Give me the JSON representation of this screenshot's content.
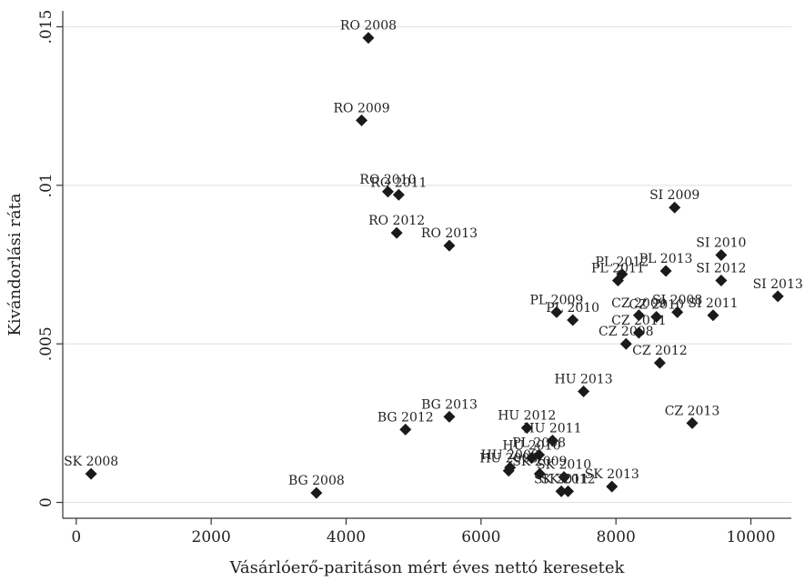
{
  "chart_data": {
    "type": "scatter",
    "title": "",
    "xlabel": "Vásárlóerő-paritáson mért éves nettó keresetek",
    "ylabel": "Kivándorlási ráta",
    "xlim": [
      -200,
      10600
    ],
    "ylim": [
      -0.0005,
      0.0155
    ],
    "xticks": [
      {
        "v": 0,
        "label": "0"
      },
      {
        "v": 2000,
        "label": "2000"
      },
      {
        "v": 4000,
        "label": "4000"
      },
      {
        "v": 6000,
        "label": "6000"
      },
      {
        "v": 8000,
        "label": "8000"
      },
      {
        "v": 10000,
        "label": "10000"
      }
    ],
    "yticks": [
      {
        "v": 0,
        "label": "0"
      },
      {
        "v": 0.005,
        "label": ".005"
      },
      {
        "v": 0.01,
        "label": ".01"
      },
      {
        "v": 0.015,
        "label": ".015"
      }
    ],
    "grid": true,
    "marker": "diamond",
    "marker_color": "#1a1a1a",
    "points": [
      {
        "label": "SK 2008",
        "x": 220,
        "y": 0.0009
      },
      {
        "label": "BG 2008",
        "x": 3560,
        "y": 0.0003
      },
      {
        "label": "BG 2012",
        "x": 4880,
        "y": 0.0023
      },
      {
        "label": "BG 2013",
        "x": 5530,
        "y": 0.0027
      },
      {
        "label": "RO 2008",
        "x": 4330,
        "y": 0.01465
      },
      {
        "label": "RO 2009",
        "x": 4230,
        "y": 0.01205
      },
      {
        "label": "RO 2010",
        "x": 4620,
        "y": 0.0098
      },
      {
        "label": "RO 2011",
        "x": 4780,
        "y": 0.0097
      },
      {
        "label": "RO 2012",
        "x": 4750,
        "y": 0.0085
      },
      {
        "label": "RO 2013",
        "x": 5530,
        "y": 0.0081
      },
      {
        "label": "HU 2008",
        "x": 6410,
        "y": 0.001
      },
      {
        "label": "HU 2009",
        "x": 6430,
        "y": 0.0011
      },
      {
        "label": "HU 2010",
        "x": 6750,
        "y": 0.0014
      },
      {
        "label": "HU 2011",
        "x": 7060,
        "y": 0.00195
      },
      {
        "label": "HU 2012",
        "x": 6680,
        "y": 0.00235
      },
      {
        "label": "HU 2013",
        "x": 7520,
        "y": 0.0035
      },
      {
        "label": "SK 2009",
        "x": 6870,
        "y": 0.0009
      },
      {
        "label": "SK 2010",
        "x": 7230,
        "y": 0.0008
      },
      {
        "label": "SK 2011",
        "x": 7190,
        "y": 0.00035
      },
      {
        "label": "SK 2012",
        "x": 7290,
        "y": 0.00035
      },
      {
        "label": "SK 2013",
        "x": 7940,
        "y": 0.0005
      },
      {
        "label": "PL 2008",
        "x": 6860,
        "y": 0.0015
      },
      {
        "label": "PL 2009",
        "x": 7120,
        "y": 0.006
      },
      {
        "label": "PL 2010",
        "x": 7360,
        "y": 0.00575
      },
      {
        "label": "PL 2011",
        "x": 8030,
        "y": 0.007
      },
      {
        "label": "PL 2012",
        "x": 8090,
        "y": 0.0072
      },
      {
        "label": "PL 2013",
        "x": 8740,
        "y": 0.0073
      },
      {
        "label": "CZ 2008",
        "x": 8150,
        "y": 0.005
      },
      {
        "label": "CZ 2009",
        "x": 8340,
        "y": 0.0059
      },
      {
        "label": "CZ 2010",
        "x": 8600,
        "y": 0.00585
      },
      {
        "label": "CZ 2011",
        "x": 8340,
        "y": 0.00535
      },
      {
        "label": "CZ 2012",
        "x": 8650,
        "y": 0.0044
      },
      {
        "label": "CZ 2013",
        "x": 9130,
        "y": 0.0025
      },
      {
        "label": "SI 2008",
        "x": 8910,
        "y": 0.006
      },
      {
        "label": "SI 2009",
        "x": 8870,
        "y": 0.0093
      },
      {
        "label": "SI 2010",
        "x": 9560,
        "y": 0.0078
      },
      {
        "label": "SI 2011",
        "x": 9440,
        "y": 0.0059
      },
      {
        "label": "SI 2012",
        "x": 9560,
        "y": 0.007
      },
      {
        "label": "SI 2013",
        "x": 10400,
        "y": 0.0065
      }
    ]
  }
}
